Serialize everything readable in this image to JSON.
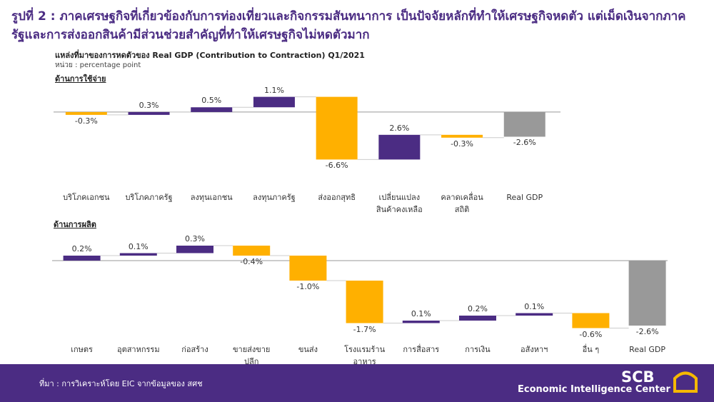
{
  "header": {
    "title": "รูปที่ 2 : ภาคเศรษฐกิจที่เกี่ยวข้องกับการท่องเที่ยวและกิจกรรมสันทนาการ เป็นปัจจัยหลักที่ทำให้เศรษฐกิจหดตัว แต่เม็ดเงินจากภาครัฐและการส่งออกสินค้ามีส่วนช่วยสำคัญที่ทำให้เศรษฐกิจไม่หดตัวมาก",
    "subtitle": "แหล่งที่มาของการหดตัวของ  Real GDP (Contribution to Contraction) Q1/2021",
    "unit": "หน่วย : percentage point"
  },
  "chart_data": [
    {
      "type": "waterfall",
      "section": "ด้านการใช้จ่าย",
      "categories": [
        "บริโภคเอกชน",
        "บริโภคภาครัฐ",
        "ลงทุนเอกชน",
        "ลงทุนภาครัฐ",
        "ส่งออกสุทธิ",
        "เปลี่ยนแปลงสินค้าคงเหลือ",
        "คลาดเคลื่อนสถิติ",
        "Real GDP"
      ],
      "values": [
        -0.3,
        0.3,
        0.5,
        1.1,
        -6.6,
        2.6,
        -0.3,
        -2.6
      ],
      "value_labels": [
        "-0.3%",
        "0.3%",
        "0.5%",
        "1.1%",
        "-6.6%",
        "2.6%",
        "-0.3%",
        "-2.6%"
      ],
      "colors": [
        "#ffb000",
        "#4b2c83",
        "#4b2c83",
        "#4b2c83",
        "#ffb000",
        "#4b2c83",
        "#ffb000",
        "#999999"
      ],
      "ylim": [
        -7,
        3
      ]
    },
    {
      "type": "waterfall",
      "section": "ด้านการผลิต",
      "categories": [
        "เกษตร",
        "อุตสาหกรรม",
        "ก่อสร้าง",
        "ขายส่งขายปลีก",
        "ขนส่ง",
        "โรงแรมร้านอาหาร",
        "การสื่อสาร",
        "การเงิน",
        "อสังหาฯ",
        "อื่น ๆ",
        "Real GDP"
      ],
      "values": [
        0.2,
        0.1,
        0.3,
        -0.4,
        -1.0,
        -1.7,
        0.1,
        0.2,
        0.1,
        -0.6,
        -2.6
      ],
      "value_labels": [
        "0.2%",
        "0.1%",
        "0.3%",
        "-0.4%",
        "-1.0%",
        "-1.7%",
        "0.1%",
        "0.2%",
        "0.1%",
        "-0.6%",
        "-2.6%"
      ],
      "colors": [
        "#4b2c83",
        "#4b2c83",
        "#4b2c83",
        "#ffb000",
        "#ffb000",
        "#ffb000",
        "#4b2c83",
        "#4b2c83",
        "#4b2c83",
        "#ffb000",
        "#999999"
      ],
      "ylim": [
        -3,
        1
      ]
    }
  ],
  "footer": {
    "source": "ที่มา : การวิเคราะห์โดย EIC จากข้อมูลของ สศช",
    "logo": "SCB",
    "tagline": "Economic Intelligence Center"
  }
}
